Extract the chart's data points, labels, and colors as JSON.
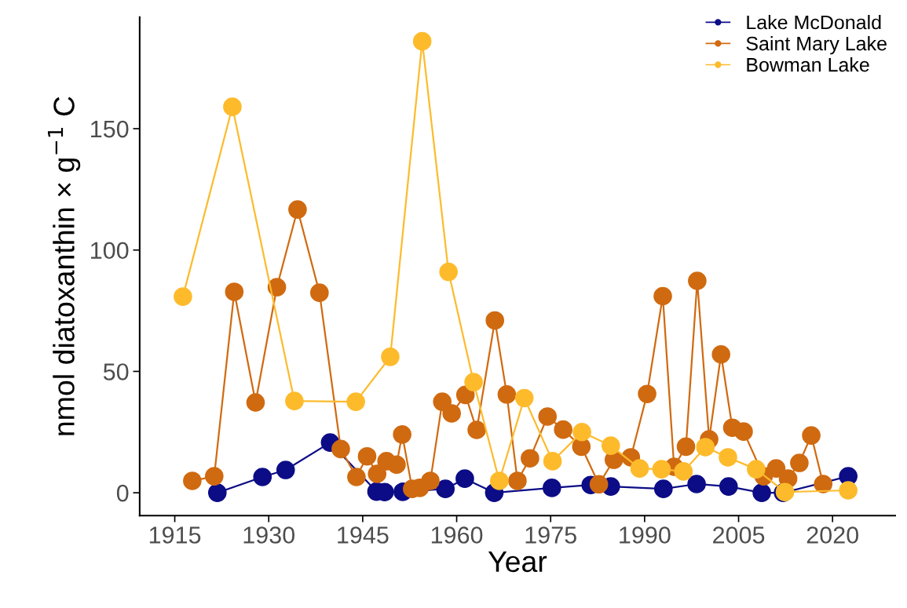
{
  "chart_data": {
    "type": "line",
    "xlabel": "Year",
    "ylabel": "nmol diatoxanthin × g$^{−1}$ C",
    "xlim": [
      1909.4,
      2030
    ],
    "ylim": [
      -9.4,
      196
    ],
    "xticks": [
      1915,
      1930,
      1945,
      1960,
      1975,
      1990,
      2005,
      2020
    ],
    "yticks": [
      0,
      50,
      100,
      150
    ],
    "grid": false,
    "legend": "top right",
    "marker": "circle",
    "line_style": "solid",
    "series": [
      {
        "name": "Lake McDonald",
        "color": "#0c0c87",
        "x": [
          1921.8,
          1929.0,
          1932.7,
          1939.8,
          1947.2,
          1948.5,
          1951.4,
          1958.2,
          1961.3,
          1966.0,
          1975.2,
          1981.4,
          1984.6,
          1993.0,
          1998.3,
          2003.4,
          2008.7,
          2012.1,
          2022.5
        ],
        "values": [
          0,
          6.5,
          9.4,
          20.7,
          0.5,
          0.3,
          0.4,
          1.6,
          5.8,
          0,
          2,
          3.2,
          2.6,
          1.6,
          3.6,
          2.6,
          0,
          0,
          6.8
        ]
      },
      {
        "name": "Saint Mary Lake",
        "color": "#d06a10",
        "x": [
          1917.8,
          1921.3,
          1924.5,
          1927.9,
          1931.3,
          1934.6,
          1938.1,
          1941.5,
          1944.0,
          1945.7,
          1947.3,
          1948.8,
          1950.4,
          1951.3,
          1952.9,
          1954.1,
          1955.8,
          1957.7,
          1959.2,
          1961.4,
          1963.2,
          1966.1,
          1968.0,
          1969.7,
          1971.7,
          1974.5,
          1977.0,
          1979.9,
          1982.7,
          1985.1,
          1987.8,
          1990.4,
          1992.9,
          1994.7,
          1996.6,
          1998.4,
          2000.3,
          2002.2,
          2004.0,
          2005.8,
          2009.0,
          2011.0,
          2012.9,
          2014.7,
          2016.6,
          2018.5
        ],
        "values": [
          4.9,
          6.8,
          82.8,
          37.2,
          84.7,
          116.7,
          82.4,
          18,
          6.5,
          15,
          7.8,
          13,
          11.6,
          24,
          1.6,
          2,
          4.9,
          37.5,
          32.7,
          40.3,
          25.9,
          71,
          40.5,
          4.9,
          14.2,
          31.4,
          26,
          19,
          3.5,
          13.6,
          14.6,
          40.7,
          81,
          10.7,
          19,
          87.3,
          22,
          57,
          26.8,
          25.2,
          6.8,
          10,
          5.8,
          12.3,
          23.6,
          3.6
        ]
      },
      {
        "name": "Bowman Lake",
        "color": "#fdbb2c",
        "x": [
          1916.3,
          1924.2,
          1934.1,
          1943.9,
          1949.4,
          1954.5,
          1958.7,
          1962.7,
          1966.8,
          1970.8,
          1975.3,
          1980.0,
          1984.6,
          1989.2,
          1992.7,
          1996.2,
          1999.7,
          2003.3,
          2007.8,
          2012.4,
          2022.5
        ],
        "values": [
          80.8,
          159,
          37.8,
          37.5,
          56,
          186,
          91,
          45.6,
          4.9,
          39,
          13,
          25,
          19.4,
          10,
          9.7,
          8.8,
          18.8,
          14.6,
          9.7,
          0.3,
          1
        ]
      }
    ]
  }
}
